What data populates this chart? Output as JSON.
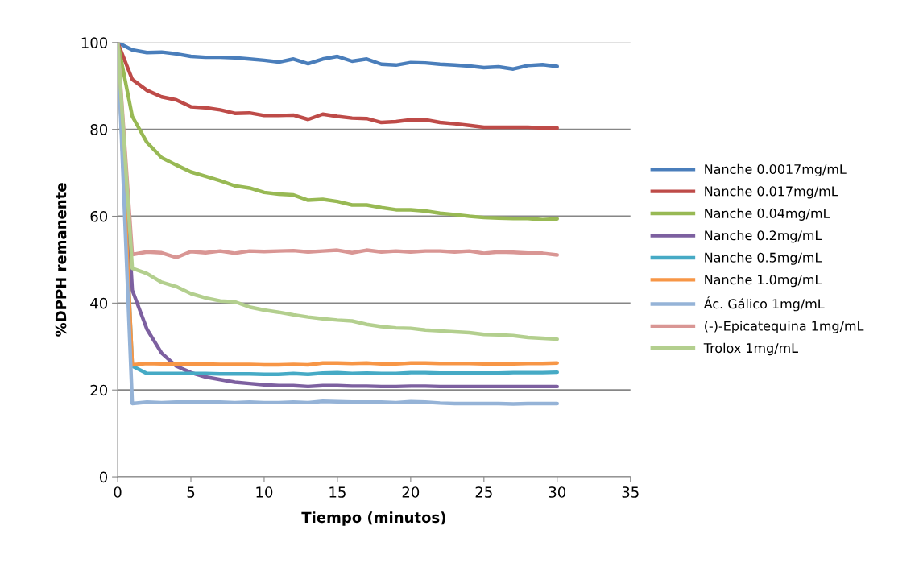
{
  "chart_data": {
    "type": "line",
    "xlabel": "Tiempo (minutos)",
    "ylabel": "%DPPH remanente",
    "x": [
      0,
      1,
      2,
      3,
      4,
      5,
      6,
      7,
      8,
      9,
      10,
      11,
      12,
      13,
      14,
      15,
      16,
      17,
      18,
      19,
      20,
      21,
      22,
      23,
      24,
      25,
      26,
      27,
      28,
      29,
      30
    ],
    "xlim": [
      0,
      35
    ],
    "xticks": [
      0,
      5,
      10,
      15,
      20,
      25,
      30,
      35
    ],
    "ylim": [
      0,
      100
    ],
    "yticks": [
      0,
      20,
      40,
      60,
      80,
      100
    ],
    "grid": "y",
    "legend": "right",
    "marker": "none",
    "line_style": "solid",
    "series": [
      {
        "name": "Nanche 0.0017mg/mL",
        "color": "#4a7ebb",
        "values": [
          100,
          98.3,
          97.7,
          97.8,
          97.4,
          96.8,
          96.6,
          96.6,
          96.5,
          96.2,
          95.9,
          95.5,
          96.2,
          95.1,
          96.2,
          96.8,
          95.7,
          96.2,
          95.0,
          94.8,
          95.4,
          95.3,
          95.0,
          94.8,
          94.6,
          94.2,
          94.4,
          93.9,
          94.7,
          94.9,
          94.5
        ]
      },
      {
        "name": "Nanche 0.017mg/mL",
        "color": "#be4b48",
        "values": [
          100,
          91.5,
          89,
          87.5,
          86.8,
          85.2,
          85,
          84.5,
          83.7,
          83.8,
          83.2,
          83.2,
          83.3,
          82.3,
          83.5,
          83,
          82.6,
          82.5,
          81.6,
          81.8,
          82.2,
          82.2,
          81.6,
          81.3,
          80.9,
          80.5,
          80.5,
          80.5,
          80.5,
          80.3,
          80.3
        ]
      },
      {
        "name": "Nanche 0.04mg/mL",
        "color": "#98b954",
        "values": [
          100,
          83,
          77,
          73.5,
          71.8,
          70.2,
          69.2,
          68.2,
          67.0,
          66.5,
          65.5,
          65.1,
          64.9,
          63.7,
          63.9,
          63.4,
          62.6,
          62.6,
          62.0,
          61.5,
          61.5,
          61.2,
          60.7,
          60.4,
          60.0,
          59.7,
          59.6,
          59.5,
          59.5,
          59.2,
          59.4
        ]
      },
      {
        "name": "Nanche 0.2mg/mL",
        "color": "#7d60a0",
        "values": [
          100,
          43,
          34,
          28.5,
          25.5,
          24,
          23,
          22.4,
          21.8,
          21.5,
          21.2,
          21.0,
          21.0,
          20.8,
          21.0,
          21.0,
          20.9,
          20.9,
          20.8,
          20.8,
          20.9,
          20.9,
          20.8,
          20.8,
          20.8,
          20.8,
          20.8,
          20.8,
          20.8,
          20.8,
          20.8
        ]
      },
      {
        "name": "Nanche 0.5mg/mL",
        "color": "#46aac5",
        "values": [
          100,
          25.5,
          23.8,
          23.8,
          23.8,
          23.8,
          23.8,
          23.7,
          23.7,
          23.7,
          23.6,
          23.6,
          23.8,
          23.6,
          23.9,
          24,
          23.8,
          23.9,
          23.8,
          23.8,
          24,
          24,
          23.9,
          23.9,
          23.9,
          23.9,
          23.9,
          24,
          24,
          24,
          24.1
        ]
      },
      {
        "name": "Nanche 1.0mg/mL",
        "color": "#f79646",
        "values": [
          100,
          25.8,
          26.1,
          26.0,
          26.0,
          26.0,
          26.0,
          25.9,
          25.9,
          25.9,
          25.8,
          25.8,
          25.9,
          25.8,
          26.2,
          26.2,
          26.1,
          26.2,
          26.0,
          26.0,
          26.2,
          26.2,
          26.1,
          26.1,
          26.1,
          26.0,
          26.0,
          26.0,
          26.1,
          26.1,
          26.2
        ]
      },
      {
        "name": "Ác. Gálico 1mg/mL",
        "color": "#95b3d7",
        "values": [
          100,
          16.9,
          17.2,
          17.1,
          17.2,
          17.2,
          17.2,
          17.2,
          17.1,
          17.2,
          17.1,
          17.1,
          17.2,
          17.1,
          17.4,
          17.3,
          17.2,
          17.2,
          17.2,
          17.1,
          17.3,
          17.2,
          17.0,
          16.9,
          16.9,
          16.9,
          16.9,
          16.8,
          16.9,
          16.9,
          16.9
        ]
      },
      {
        "name": "(-)-Epicatequina 1mg/mL",
        "color": "#d99694",
        "values": [
          100,
          51.2,
          51.8,
          51.6,
          50.5,
          51.9,
          51.6,
          52.0,
          51.5,
          52.0,
          51.9,
          52.0,
          52.1,
          51.8,
          52.0,
          52.2,
          51.6,
          52.2,
          51.8,
          52.0,
          51.8,
          52.0,
          52.0,
          51.8,
          52.0,
          51.5,
          51.8,
          51.7,
          51.5,
          51.5,
          51.1
        ]
      },
      {
        "name": "Trolox 1mg/mL",
        "color": "#b3cf8e",
        "values": [
          100,
          48,
          46.8,
          44.8,
          43.8,
          42.2,
          41.2,
          40.5,
          40.3,
          39.1,
          38.4,
          37.9,
          37.3,
          36.8,
          36.4,
          36.1,
          35.9,
          35.1,
          34.6,
          34.3,
          34.2,
          33.8,
          33.6,
          33.4,
          33.2,
          32.8,
          32.7,
          32.5,
          32.1,
          31.9,
          31.7
        ]
      }
    ]
  }
}
